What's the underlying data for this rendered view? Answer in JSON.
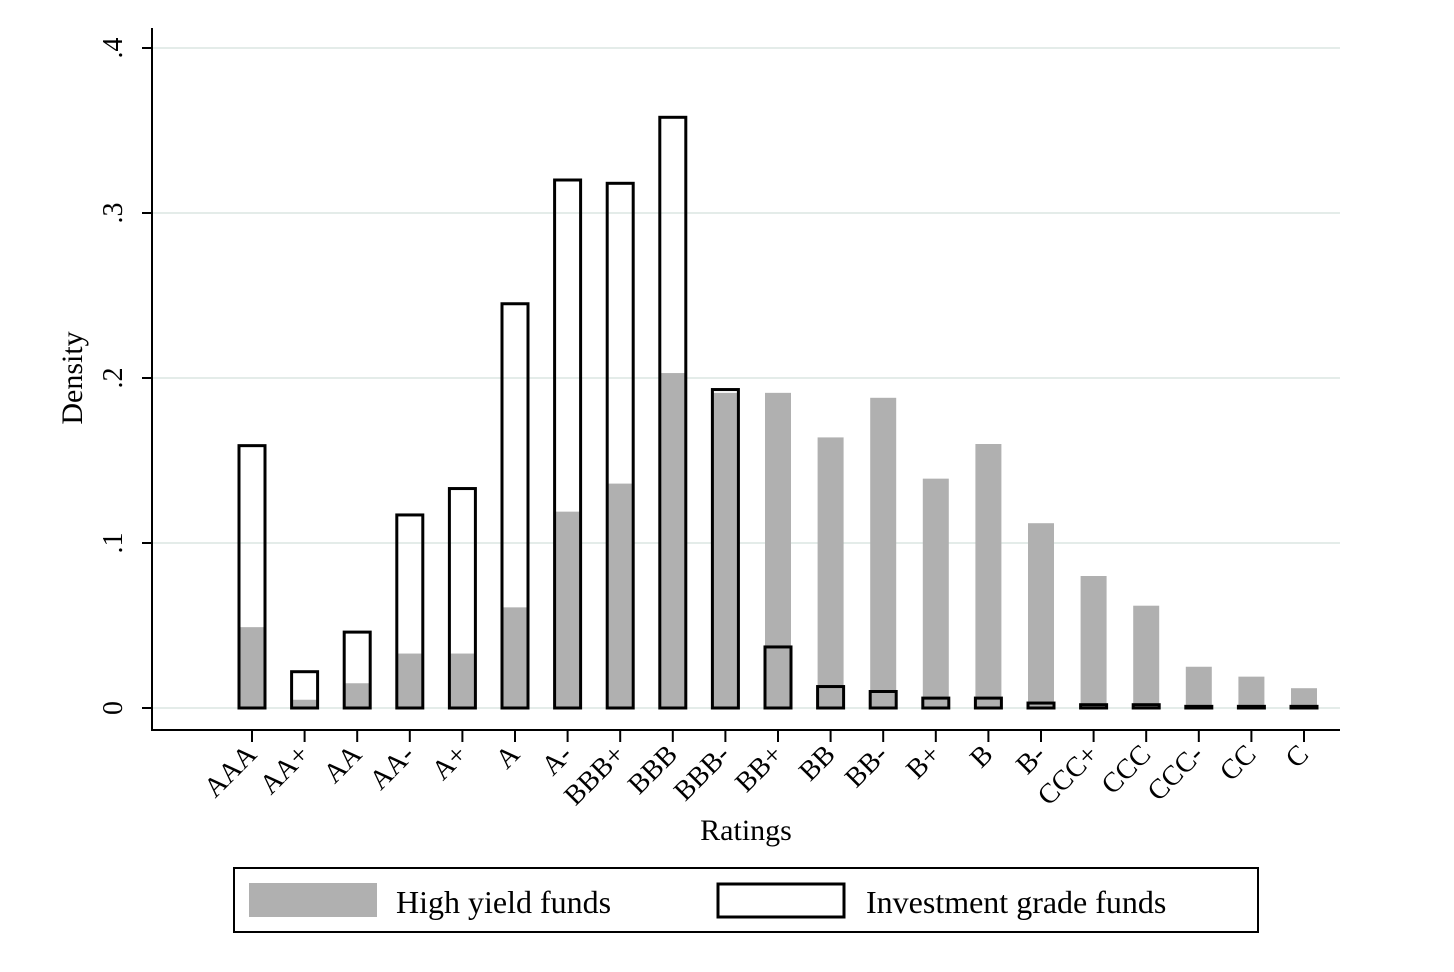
{
  "chart_data": {
    "type": "bar",
    "xlabel": "Ratings",
    "ylabel": "Density",
    "ylim": [
      0,
      0.4
    ],
    "yticks": [
      {
        "value": 0,
        "label": "0"
      },
      {
        "value": 0.1,
        "label": ".1"
      },
      {
        "value": 0.2,
        "label": ".2"
      },
      {
        "value": 0.3,
        "label": ".3"
      },
      {
        "value": 0.4,
        "label": ".4"
      }
    ],
    "grid": true,
    "legend_position": "bottom",
    "categories": [
      "AAA",
      "AA+",
      "AA",
      "AA-",
      "A+",
      "A",
      "A-",
      "BBB+",
      "BBB",
      "BBB-",
      "BB+",
      "BB",
      "BB-",
      "B+",
      "B",
      "B-",
      "CCC+",
      "CCC",
      "CCC-",
      "CC",
      "C"
    ],
    "series": [
      {
        "name": "High yield funds",
        "style": "filled",
        "color": "#b0b0b0",
        "values": [
          0.049,
          0.005,
          0.015,
          0.033,
          0.033,
          0.061,
          0.119,
          0.136,
          0.203,
          0.191,
          0.191,
          0.164,
          0.188,
          0.139,
          0.16,
          0.112,
          0.08,
          0.062,
          0.025,
          0.019,
          0.012
        ]
      },
      {
        "name": "Investment grade funds",
        "style": "outline",
        "color": "#000000",
        "values": [
          0.159,
          0.022,
          0.046,
          0.117,
          0.133,
          0.245,
          0.32,
          0.318,
          0.358,
          0.193,
          0.037,
          0.013,
          0.01,
          0.006,
          0.006,
          0.003,
          0.002,
          0.002,
          0.001,
          0.001,
          0.001
        ]
      }
    ]
  },
  "colors": {
    "grid": "#e4ece9",
    "axis": "#000000",
    "high_yield_fill": "#b0b0b0"
  }
}
